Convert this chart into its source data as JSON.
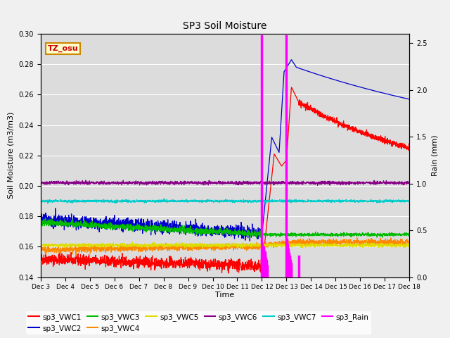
{
  "title": "SP3 Soil Moisture",
  "xlabel": "Time",
  "ylabel_left": "Soil Moisture (m3/m3)",
  "ylabel_right": "Rain (mm)",
  "annotation": "TZ_osu",
  "xlim_days": [
    0,
    15
  ],
  "ylim_left": [
    0.14,
    0.3
  ],
  "ylim_right": [
    0.0,
    2.6
  ],
  "xtick_labels": [
    "Dec 3",
    "Dec 4",
    "Dec 5",
    "Dec 6",
    "Dec 7",
    "Dec 8",
    "Dec 9",
    "Dec 10",
    "Dec 11",
    "Dec 12",
    "Dec 13",
    "Dec 14",
    "Dec 15",
    "Dec 16",
    "Dec 17",
    "Dec 18"
  ],
  "series_colors": {
    "sp3_VWC1": "#ff0000",
    "sp3_VWC2": "#0000cc",
    "sp3_VWC3": "#00bb00",
    "sp3_VWC4": "#ff8800",
    "sp3_VWC5": "#dddd00",
    "sp3_VWC6": "#880088",
    "sp3_VWC7": "#00cccc",
    "sp3_Rain": "#ff00ff"
  },
  "fig_bg": "#f0f0f0",
  "plot_bg": "#dcdcdc"
}
